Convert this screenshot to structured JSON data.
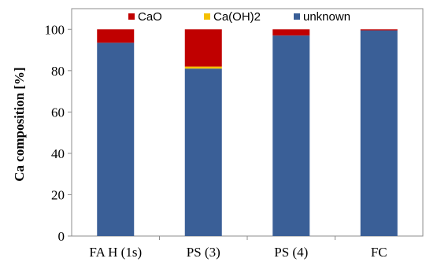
{
  "chart_data": {
    "type": "bar",
    "stacked": true,
    "categories": [
      "FA H (1s)",
      "PS (3)",
      "PS (4)",
      "FC"
    ],
    "series": [
      {
        "name": "unknown",
        "color": "#3a5f97",
        "values": [
          93.5,
          81,
          97,
          99.5
        ]
      },
      {
        "name": "Ca(OH)2",
        "color": "#f5c000",
        "values": [
          0,
          1,
          0,
          0
        ]
      },
      {
        "name": "CaO",
        "color": "#c00000",
        "values": [
          6.5,
          18,
          3,
          0.5
        ]
      }
    ],
    "legend_order": [
      "CaO",
      "Ca(OH)2",
      "unknown"
    ],
    "legend_placement": "top",
    "title": "",
    "xlabel": "",
    "ylabel": "Ca composition [%]",
    "ylim": [
      0,
      110
    ],
    "yticks": [
      0,
      20,
      40,
      60,
      80,
      100
    ],
    "grid": false
  }
}
